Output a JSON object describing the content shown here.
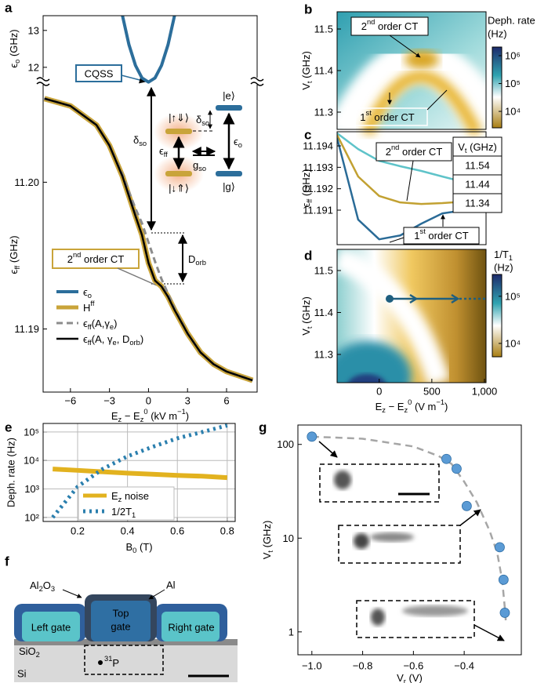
{
  "chart_data": [
    {
      "type": "line",
      "label": "a",
      "xlabel": [
        {
          "text": "E"
        },
        {
          "text": "z",
          "style": "sub"
        },
        {
          "text": " − E"
        },
        {
          "text": "z",
          "style": "sub"
        },
        {
          "text": "0",
          "style": "sup"
        },
        {
          "text": " (kV m"
        },
        {
          "text": "−1",
          "style": "sup"
        },
        {
          "text": ")"
        }
      ],
      "xlim": [
        -8.1,
        8.35
      ],
      "xticks": [
        {
          "value": -6,
          "label": "−6"
        },
        {
          "value": -3,
          "label": "−3"
        },
        0,
        3,
        6
      ],
      "upper": {
        "ylabel": [
          {
            "text": "ϵ"
          },
          {
            "text": "o",
            "style": "sub"
          },
          {
            "text": " (GHz)"
          }
        ],
        "ylim": [
          11.55,
          13.4
        ],
        "yticks": [
          12,
          13
        ]
      },
      "lower": {
        "ylabel": [
          {
            "text": "ϵ"
          },
          {
            "text": "ff",
            "style": "sub"
          },
          {
            "text": " (GHz)"
          }
        ],
        "ylim": [
          11.1857,
          11.2067
        ],
        "yticks": [
          11.19,
          {
            "value": 11.2,
            "label": "11.20"
          }
        ]
      },
      "series": [
        {
          "name": [
            {
              "text": "ϵ"
            },
            {
              "text": "o",
              "style": "sub"
            }
          ],
          "color": "#2c6e9b",
          "axis": "upper",
          "width": 4,
          "x": [
            -2,
            -1.5,
            -1,
            -0.5,
            0,
            0.5,
            1,
            1.5,
            2
          ],
          "values": [
            13.4,
            12.61,
            12.05,
            11.71,
            11.6,
            11.71,
            12.05,
            12.61,
            13.4
          ]
        },
        {
          "name": [
            {
              "text": "H"
            },
            {
              "text": "ff",
              "style": "sup"
            }
          ],
          "color": "#c9a43a",
          "axis": "lower",
          "width": 7,
          "x": [
            -8,
            -6,
            -4,
            -3,
            -2,
            -1,
            -0.5,
            0,
            0.5,
            1,
            1.5,
            2,
            3,
            4,
            5,
            6,
            8
          ],
          "values": [
            11.2057,
            11.2052,
            11.2039,
            11.2025,
            11.2004,
            11.1977,
            11.1964,
            11.1945,
            11.1933,
            11.1929,
            11.1922,
            11.1913,
            11.1897,
            11.1884,
            11.1876,
            11.1871,
            11.1865
          ]
        },
        {
          "name": [
            {
              "text": "ϵ"
            },
            {
              "text": "ff",
              "style": "sub"
            },
            {
              "text": "(A,γ"
            },
            {
              "text": "e",
              "style": "sub"
            },
            {
              "text": ")"
            }
          ],
          "color": "#8c8c8c",
          "axis": "lower",
          "width": 3,
          "dash": "dash",
          "x": [
            -8,
            -6,
            -4,
            -3,
            -2,
            -1,
            -0.5,
            0,
            0.5,
            1,
            1.5,
            2,
            3,
            4,
            5,
            6,
            8
          ],
          "values": [
            11.2057,
            11.2052,
            11.2039,
            11.2025,
            11.2005,
            11.1982,
            11.1972,
            11.1959,
            11.1946,
            11.1934,
            11.1924,
            11.1914,
            11.1897,
            11.1884,
            11.1876,
            11.1871,
            11.1865
          ]
        },
        {
          "name": [
            {
              "text": "ϵ"
            },
            {
              "text": "ff",
              "style": "sub"
            },
            {
              "text": "(A, γ"
            },
            {
              "text": "e",
              "style": "sub"
            },
            {
              "text": ", D"
            },
            {
              "text": "orb",
              "style": "sub"
            },
            {
              "text": ")"
            }
          ],
          "color": "#000000",
          "axis": "lower",
          "width": 2.5,
          "x": [
            -8,
            -6,
            -4,
            -3,
            -2,
            -1,
            -0.5,
            0,
            0.5,
            1,
            1.5,
            2,
            3,
            4,
            5,
            6,
            8
          ],
          "values": [
            11.2057,
            11.2052,
            11.2039,
            11.2025,
            11.2004,
            11.1977,
            11.1964,
            11.1945,
            11.1933,
            11.1929,
            11.1922,
            11.1913,
            11.1897,
            11.1884,
            11.1876,
            11.1871,
            11.1865
          ]
        }
      ],
      "annotations": {
        "cqss": "CQSS",
        "delta_so": [
          {
            "text": "δ"
          },
          {
            "text": "so",
            "style": "sub"
          }
        ],
        "d_orb": [
          {
            "text": "D"
          },
          {
            "text": "orb",
            "style": "sub"
          }
        ],
        "ct": [
          {
            "text": "2"
          },
          {
            "text": "nd",
            "style": "sup"
          },
          {
            "text": " order CT"
          }
        ],
        "inset": {
          "up_down": "|↑⇓⟩",
          "down_up": "|↓⇑⟩",
          "excited": "|e⟩",
          "ground": "|g⟩",
          "delta_so": [
            {
              "text": "δ"
            },
            {
              "text": "so",
              "style": "sub"
            }
          ],
          "eps_ff": [
            {
              "text": "ϵ"
            },
            {
              "text": "ff",
              "style": "sub"
            }
          ],
          "eps_o": [
            {
              "text": "ϵ"
            },
            {
              "text": "o",
              "style": "sub"
            }
          ],
          "g_so": [
            {
              "text": "g"
            },
            {
              "text": "so",
              "style": "sub"
            }
          ]
        }
      }
    },
    {
      "type": "heatmap",
      "label": "b",
      "ylabel": [
        {
          "text": "V"
        },
        {
          "text": "t",
          "style": "sub"
        },
        {
          "text": " (GHz)"
        }
      ],
      "ylim": [
        11.2585,
        11.5415
      ],
      "yticks": [
        11.3,
        11.4,
        11.5
      ],
      "colorbar": {
        "title": [
          "Deph. rate",
          "(Hz)"
        ],
        "scale": "log",
        "clim": [
          2570,
          2040000
        ],
        "ticks": [
          {
            "value": 10000,
            "label": "10⁴"
          },
          {
            "value": 100000,
            "label": "10⁵"
          },
          {
            "value": 1000000,
            "label": "10⁶"
          }
        ]
      },
      "annotations": {
        "second": [
          {
            "text": "2"
          },
          {
            "text": "nd",
            "style": "sup"
          },
          {
            "text": " order CT"
          }
        ],
        "first": [
          {
            "text": "1"
          },
          {
            "text": "st",
            "style": "sup"
          },
          {
            "text": " order CT"
          }
        ]
      }
    },
    {
      "type": "line",
      "label": "c",
      "ylabel": [
        {
          "text": "ϵ"
        },
        {
          "text": "ff",
          "style": "sub"
        },
        {
          "text": " (GHz)"
        }
      ],
      "xlim": [
        -400,
        1015
      ],
      "ylim": [
        11.18939,
        11.19466
      ],
      "yticks": [
        11.191,
        11.192,
        11.193,
        11.194
      ],
      "legend_title": [
        {
          "text": "V"
        },
        {
          "text": "t",
          "style": "sub"
        },
        {
          "text": " (GHz)"
        }
      ],
      "series": [
        {
          "name": "11.54",
          "color": "#5fc3c9",
          "x": [
            -400,
            -200,
            0,
            200,
            400,
            600,
            800,
            1000
          ],
          "values": [
            11.19459,
            11.19385,
            11.1933,
            11.19305,
            11.19283,
            11.19257,
            11.19232,
            11.19202
          ]
        },
        {
          "name": "11.44",
          "color": "#c2a132",
          "x": [
            -400,
            -200,
            0,
            200,
            400,
            600,
            800,
            1000
          ],
          "values": [
            11.19451,
            11.19257,
            11.19166,
            11.19136,
            11.19129,
            11.19133,
            11.1914,
            11.19147
          ]
        },
        {
          "name": "11.34",
          "color": "#2a6b97",
          "x": [
            -400,
            -200,
            0,
            200,
            400,
            600,
            800,
            1000
          ],
          "values": [
            11.19437,
            11.19056,
            11.18964,
            11.18982,
            11.19037,
            11.19085,
            11.19099,
            11.19092
          ]
        }
      ],
      "annotations": {
        "second": [
          {
            "text": "2"
          },
          {
            "text": "nd",
            "style": "sup"
          },
          {
            "text": " order CT"
          }
        ],
        "first": [
          {
            "text": "1"
          },
          {
            "text": "st",
            "style": "sup"
          },
          {
            "text": " order CT"
          }
        ]
      }
    },
    {
      "type": "heatmap",
      "label": "d",
      "xlabel": [
        {
          "text": "E"
        },
        {
          "text": "z",
          "style": "sub"
        },
        {
          "text": " − E"
        },
        {
          "text": "z",
          "style": "sub"
        },
        {
          "text": "0",
          "style": "sup"
        },
        {
          "text": " (V m"
        },
        {
          "text": "−1",
          "style": "sup"
        },
        {
          "text": ")"
        }
      ],
      "ylabel": [
        {
          "text": "V"
        },
        {
          "text": "t",
          "style": "sub"
        },
        {
          "text": " (GHz)"
        }
      ],
      "xlim": [
        -400,
        1015
      ],
      "xticks": [
        0,
        500,
        {
          "value": 1000,
          "label": "1,000"
        }
      ],
      "ylim": [
        11.2327,
        11.5505
      ],
      "yticks": [
        11.3,
        11.4,
        11.5
      ],
      "colorbar": {
        "title": [
          [
            {
              "text": "1/T"
            },
            {
              "text": "1",
              "style": "sub"
            }
          ],
          "(Hz)"
        ],
        "scale": "log",
        "clim": [
          5200,
          290000
        ],
        "ticks": [
          {
            "value": 10000,
            "label": "10⁴"
          },
          {
            "value": 100000,
            "label": "10⁵"
          }
        ]
      }
    },
    {
      "type": "line",
      "label": "e",
      "yscale": "log",
      "grid": true,
      "xlabel": [
        {
          "text": "B"
        },
        {
          "text": "0",
          "style": "sub"
        },
        {
          "text": " (T)"
        }
      ],
      "ylabel": "Deph. rate (Hz)",
      "xlim": [
        0.0616,
        0.832
      ],
      "ylim": [
        72,
        200000
      ],
      "xticks": [
        0.2,
        0.4,
        0.6,
        0.8
      ],
      "yticks": [
        {
          "value": 100,
          "label": "10²"
        },
        {
          "value": 1000,
          "label": "10³"
        },
        {
          "value": 10000,
          "label": "10⁴"
        },
        {
          "value": 100000,
          "label": "10⁵"
        }
      ],
      "series": [
        {
          "name": [
            {
              "text": "E"
            },
            {
              "text": "z",
              "style": "sub"
            },
            {
              "text": " noise"
            }
          ],
          "color": "#e2b21f",
          "width": 6,
          "x": [
            0.1,
            0.2,
            0.3,
            0.4,
            0.5,
            0.6,
            0.7,
            0.8
          ],
          "values": [
            5000,
            4500,
            4000,
            3600,
            3300,
            3000,
            2800,
            2500
          ]
        },
        {
          "name": [
            {
              "text": "1/2T"
            },
            {
              "text": "1",
              "style": "sub"
            }
          ],
          "color": "#2b7fae",
          "width": 5,
          "dash": "dot",
          "x": [
            0.1,
            0.2,
            0.3,
            0.4,
            0.5,
            0.6,
            0.7,
            0.8
          ],
          "values": [
            100,
            1200,
            5000,
            14000,
            30000,
            60000,
            100000,
            170000
          ]
        }
      ]
    },
    {
      "type": "scatter",
      "label": "g",
      "yscale": "log",
      "xlabel": [
        {
          "text": "V"
        },
        {
          "text": "r",
          "style": "sub"
        },
        {
          "text": " (V)"
        }
      ],
      "ylabel": [
        {
          "text": "V"
        },
        {
          "text": "t",
          "style": "sub"
        },
        {
          "text": " (GHz)"
        }
      ],
      "xlim": [
        -1.055,
        -0.175
      ],
      "ylim": [
        0.57,
        161
      ],
      "xticks": [
        {
          "value": -1,
          "label": "−1.0"
        },
        {
          "value": -0.8,
          "label": "−0.8"
        },
        {
          "value": -0.6,
          "label": "−0.6"
        },
        {
          "value": -0.4,
          "label": "−0.4"
        }
      ],
      "yticks": [
        1,
        10,
        100
      ],
      "series": [
        {
          "color": "#5b9bd5",
          "x": [
            -1.0,
            -0.47,
            -0.43,
            -0.39,
            -0.26,
            -0.245,
            -0.24
          ],
          "values": [
            121,
            70,
            55,
            22,
            8,
            3.6,
            1.6
          ]
        }
      ],
      "fit": {
        "color": "#a6a6a6",
        "x": [
          -1.0,
          -0.8,
          -0.6,
          -0.5,
          -0.45,
          -0.4,
          -0.35,
          -0.3,
          -0.27,
          -0.25,
          -0.24,
          -0.235
        ],
        "values": [
          121,
          115,
          95,
          75,
          62,
          40,
          24,
          12,
          7,
          3.5,
          1.8,
          1.2
        ]
      }
    }
  ],
  "diagram_f": {
    "label": "f",
    "al2o3": [
      {
        "text": "Al"
      },
      {
        "text": "2",
        "style": "sub"
      },
      {
        "text": "O"
      },
      {
        "text": "3",
        "style": "sub"
      }
    ],
    "al": "Al",
    "left_gate": "Left gate",
    "top_gate": [
      "Top",
      "gate"
    ],
    "right_gate": "Right gate",
    "sio2": [
      {
        "text": "SiO"
      },
      {
        "text": "2",
        "style": "sub"
      }
    ],
    "p31": [
      {
        "text": "31",
        "style": "sup"
      },
      {
        "text": "P"
      }
    ],
    "si": "Si"
  }
}
